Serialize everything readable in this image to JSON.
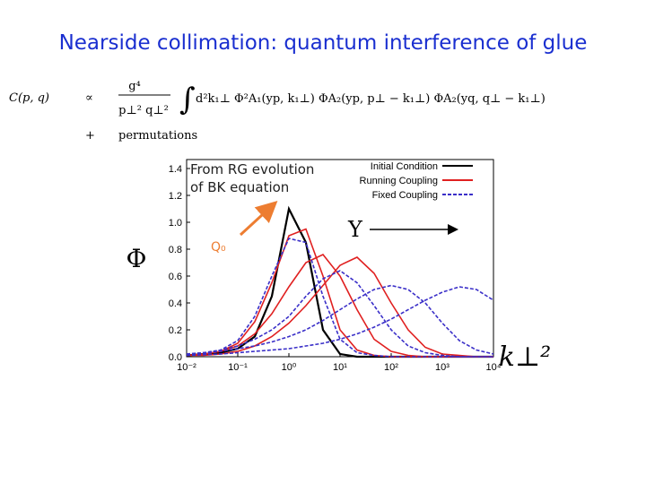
{
  "slide": {
    "title": "Nearside collimation: quantum interference of glue",
    "lhs": "C(p, q)",
    "propto": "∝",
    "numerator": "g⁴",
    "denominator": "p⊥² q⊥²",
    "integral": "∫",
    "integrand": "d²k₁⊥ Φ²A₁(yp, k₁⊥) ΦA₂(yp, p⊥ − k₁⊥) ΦA₂(yq, q⊥ − k₁⊥)",
    "plus": "+",
    "permutations": "permutations"
  },
  "chart_data": {
    "type": "line",
    "xscale": "log",
    "xlabel": "k⊥²",
    "ylabel": "Φ",
    "annotation_lines": [
      "From RG evolution",
      "of BK equation"
    ],
    "q0_label": "Q₀",
    "arrow_label": "Y",
    "legend": "upper right",
    "x": [
      0.01,
      0.0215,
      0.0464,
      0.1,
      0.215,
      0.464,
      1,
      2.15,
      4.64,
      10,
      21.5,
      46.4,
      100,
      215,
      464,
      1000,
      2150,
      4640,
      10000
    ],
    "xlim": [
      0.01,
      10000
    ],
    "xticks": [
      {
        "value": 0.01,
        "label": "10⁻²"
      },
      {
        "value": 0.1,
        "label": "10⁻¹"
      },
      {
        "value": 1,
        "label": "10⁰"
      },
      {
        "value": 10,
        "label": "10¹"
      },
      {
        "value": 100,
        "label": "10²"
      },
      {
        "value": 1000,
        "label": "10³"
      },
      {
        "value": 10000,
        "label": "10⁴"
      }
    ],
    "ylim": [
      0,
      1.4
    ],
    "yticks": [
      0,
      0.2,
      0.4,
      0.6,
      0.8,
      1,
      1.2,
      1.4
    ],
    "yticklabels": [
      "0.0",
      "0.2",
      "0.4",
      "0.6",
      "0.8",
      "1.0",
      "1.2",
      "1.4"
    ],
    "series": [
      {
        "name": "Initial Condition",
        "color": "#000000",
        "dash": false,
        "curves": [
          [
            0.01,
            0.02,
            0.03,
            0.06,
            0.15,
            0.45,
            1.1,
            0.85,
            0.2,
            0.02,
            0,
            0,
            0,
            0,
            0,
            0,
            0,
            0,
            0
          ]
        ]
      },
      {
        "name": "Running Coupling",
        "color": "#e02020",
        "dash": false,
        "curves": [
          [
            0.01,
            0.02,
            0.04,
            0.1,
            0.26,
            0.55,
            0.9,
            0.95,
            0.6,
            0.2,
            0.05,
            0.01,
            0,
            0,
            0,
            0,
            0,
            0,
            0
          ],
          [
            0.01,
            0.02,
            0.04,
            0.08,
            0.17,
            0.32,
            0.52,
            0.7,
            0.76,
            0.6,
            0.35,
            0.13,
            0.04,
            0.01,
            0,
            0,
            0,
            0,
            0
          ],
          [
            0.01,
            0.01,
            0.02,
            0.04,
            0.08,
            0.15,
            0.25,
            0.38,
            0.53,
            0.68,
            0.74,
            0.62,
            0.4,
            0.2,
            0.07,
            0.02,
            0.01,
            0,
            0
          ]
        ]
      },
      {
        "name": "Fixed Coupling",
        "color": "#3a2fc8",
        "dash": true,
        "curves": [
          [
            0.01,
            0.02,
            0.05,
            0.12,
            0.3,
            0.6,
            0.88,
            0.85,
            0.45,
            0.13,
            0.03,
            0.01,
            0,
            0,
            0,
            0,
            0,
            0,
            0
          ],
          [
            0.02,
            0.03,
            0.05,
            0.08,
            0.13,
            0.2,
            0.3,
            0.45,
            0.58,
            0.64,
            0.55,
            0.38,
            0.2,
            0.08,
            0.03,
            0.01,
            0,
            0,
            0
          ],
          [
            0.02,
            0.03,
            0.04,
            0.06,
            0.08,
            0.11,
            0.15,
            0.2,
            0.27,
            0.35,
            0.43,
            0.5,
            0.53,
            0.5,
            0.4,
            0.25,
            0.12,
            0.05,
            0.02
          ],
          [
            0.01,
            0.015,
            0.02,
            0.03,
            0.04,
            0.05,
            0.06,
            0.08,
            0.1,
            0.13,
            0.17,
            0.22,
            0.28,
            0.35,
            0.42,
            0.48,
            0.52,
            0.5,
            0.42
          ]
        ]
      }
    ]
  }
}
